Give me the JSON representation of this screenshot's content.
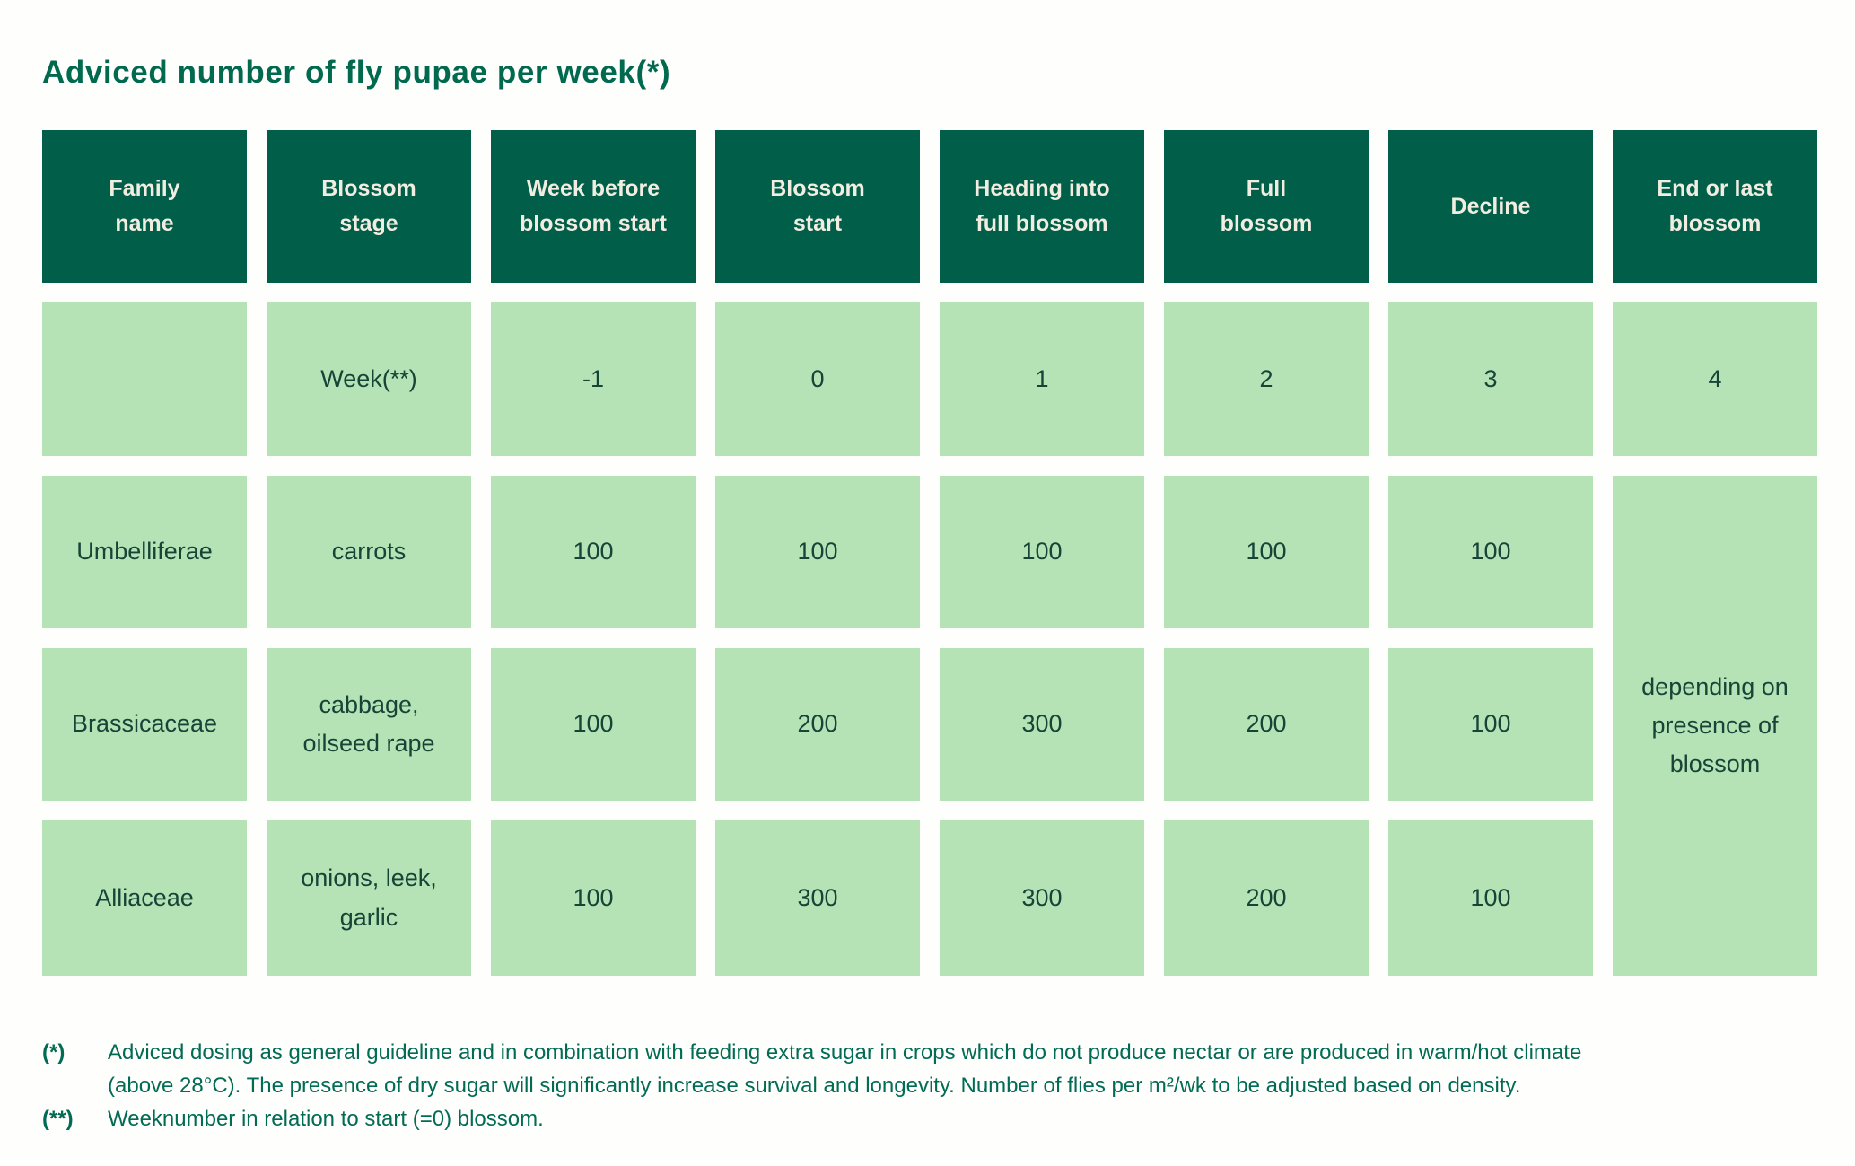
{
  "title": "Adviced number of fly pupae per week(*)",
  "colors": {
    "header_bg": "#005E49",
    "header_text": "#F2EDE1",
    "cell_bg": "#B5E3B5",
    "cell_text": "#164538",
    "title_text": "#00694E",
    "footnote_text": "#016B53",
    "page_bg": "#FEFEFC"
  },
  "table": {
    "headers": [
      "Family\nname",
      "Blossom\nstage",
      "Week before\nblossom start",
      "Blossom\nstart",
      "Heading into\nfull blossom",
      "Full\nblossom",
      "Decline",
      "End or last\nblossom"
    ],
    "week_row": [
      "",
      "Week(**)",
      "-1",
      "0",
      "1",
      "2",
      "3",
      "4"
    ],
    "rows": [
      {
        "family": "Umbelliferae",
        "crops": "carrots",
        "values": [
          "100",
          "100",
          "100",
          "100",
          "100"
        ]
      },
      {
        "family": "Brassicaceae",
        "crops": "cabbage,\noilseed rape",
        "values": [
          "100",
          "200",
          "300",
          "200",
          "100"
        ]
      },
      {
        "family": "Alliaceae",
        "crops": "onions, leek,\ngarlic",
        "values": [
          "100",
          "300",
          "300",
          "200",
          "100"
        ]
      }
    ],
    "merged_note": "depending on\npresence of\nblossom"
  },
  "footnotes": [
    {
      "marker": "(*)",
      "text": "Adviced dosing as general guideline and in combination with feeding extra sugar in crops which do not produce nectar or are produced in warm/hot climate\n(above 28°C). The presence of dry sugar will significantly increase survival and longevity. Number of flies per m²/wk to be adjusted based on density."
    },
    {
      "marker": "(**)",
      "text": "Weeknumber in relation to start (=0) blossom."
    }
  ]
}
